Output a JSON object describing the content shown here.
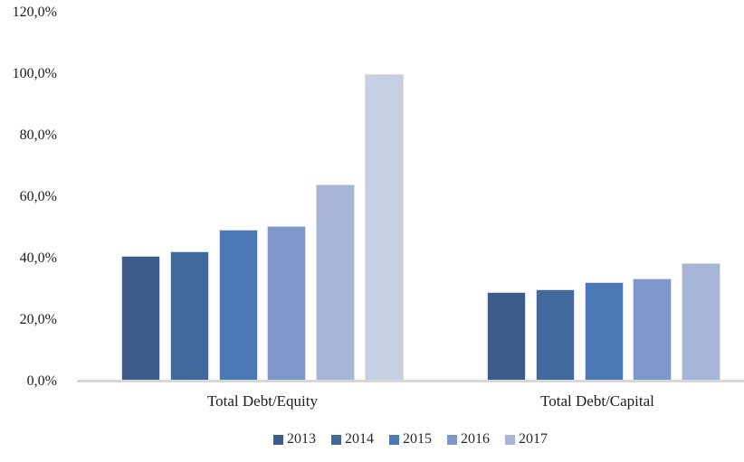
{
  "chart_data": {
    "type": "bar",
    "title": "",
    "categories": [
      "Total Debt/Equity",
      "Total Debt/Capital"
    ],
    "series": [
      {
        "name": "2013",
        "color": "#3C5D89",
        "values": [
          41.0,
          29.0
        ]
      },
      {
        "name": "2014",
        "color": "#41699C",
        "values": [
          42.5,
          30.0
        ]
      },
      {
        "name": "2015",
        "color": "#4A79B5",
        "values": [
          49.5,
          32.5
        ]
      },
      {
        "name": "2016",
        "color": "#7E98CB",
        "values": [
          50.5,
          33.5
        ]
      },
      {
        "name": "2017",
        "color": "#A7B5D6",
        "values": [
          64.0,
          38.5
        ]
      },
      {
        "name": "",
        "color": "#C7CFE3",
        "values": [
          100.0,
          null
        ],
        "in_legend": false
      }
    ],
    "y_axis": {
      "min": 0,
      "max": 120,
      "step": 20,
      "tick_labels": [
        "0,0%",
        "20,0%",
        "40,0%",
        "60,0%",
        "80,0%",
        "100,0%",
        "120,0%"
      ],
      "decimal_separator": "comma"
    },
    "legend": {
      "position": "bottom",
      "entries": [
        "2013",
        "2014",
        "2015",
        "2016",
        "2017"
      ]
    },
    "grid": false,
    "axis_line_color": "#d7d7d7",
    "background_color": "#ffffff"
  }
}
